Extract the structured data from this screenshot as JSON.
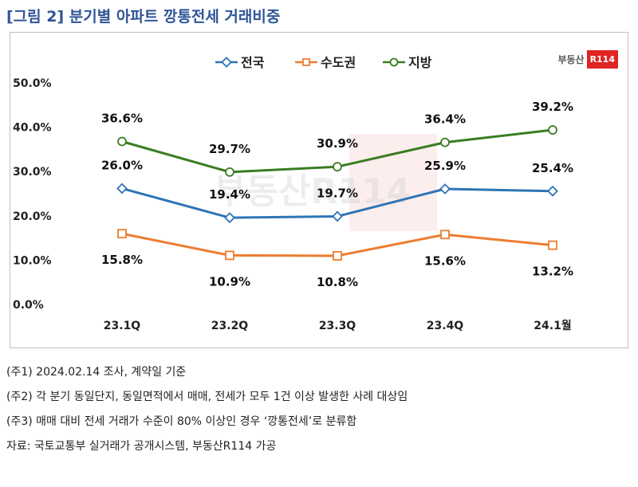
{
  "figure_title": "[그림 2] 분기별 아파트 깡통전세 거래비중",
  "logo": {
    "text": "부동산",
    "badge": "R114"
  },
  "watermark": "부동산R114",
  "chart_data": {
    "type": "line",
    "categories": [
      "23.1Q",
      "23.2Q",
      "23.3Q",
      "23.4Q",
      "24.1월"
    ],
    "series": [
      {
        "name": "전국",
        "values": [
          26.0,
          19.4,
          19.7,
          25.9,
          25.4
        ],
        "labels": [
          "26.0%",
          "19.4%",
          "19.7%",
          "25.9%",
          "25.4%"
        ],
        "color": "#2e75b6"
      },
      {
        "name": "수도권",
        "values": [
          15.8,
          10.9,
          10.8,
          15.6,
          13.2
        ],
        "labels": [
          "15.8%",
          "10.9%",
          "10.8%",
          "15.6%",
          "13.2%"
        ],
        "color": "#ed7d31"
      },
      {
        "name": "지방",
        "values": [
          36.6,
          29.7,
          30.9,
          36.4,
          39.2
        ],
        "labels": [
          "36.6%",
          "29.7%",
          "30.9%",
          "36.4%",
          "39.2%"
        ],
        "color": "#3a7d22"
      }
    ],
    "y_ticks": [
      "0.0%",
      "10.0%",
      "20.0%",
      "30.0%",
      "40.0%",
      "50.0%"
    ],
    "ylim": [
      0,
      50
    ],
    "grid": false,
    "legend_position": "top-center",
    "title": "",
    "xlabel": "",
    "ylabel": ""
  },
  "notes": [
    "(주1) 2024.02.14 조사, 계약일 기준",
    "(주2) 각 분기 동일단지, 동일면적에서 매매, 전세가 모두 1건 이상 발생한 사례 대상임",
    "(주3) 매매 대비 전세 거래가 수준이 80% 이상인 경우 ‘깡통전세’로 분류함",
    "자료: 국토교통부 실거래가 공개시스템, 부동산R114 가공"
  ]
}
